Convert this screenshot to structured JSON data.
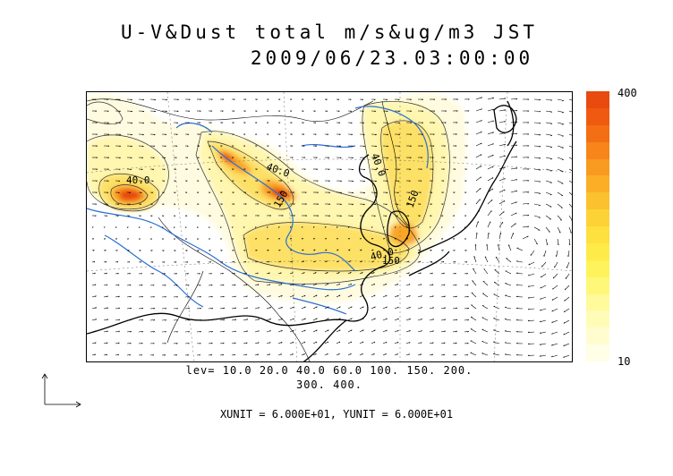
{
  "title": {
    "line1": "U-V&Dust total m/s&ug/m3 JST",
    "line2": "2009/06/23.03:00:00"
  },
  "map": {
    "contour_labels": [
      "40.0",
      "40.0",
      "40.0",
      "150",
      "40.0",
      "150",
      "150"
    ],
    "colors": {
      "land_line": "#000000",
      "river": "#2a6fd6",
      "lowest": "#fffbe0",
      "highest": "#e84a10"
    }
  },
  "colorbar": {
    "max_label": "400",
    "min_label": "10",
    "colors": [
      "#e84a10",
      "#f05a10",
      "#f46e14",
      "#f7851a",
      "#f99a20",
      "#fbae26",
      "#fcc12e",
      "#fdd236",
      "#fee03e",
      "#feeb4a",
      "#fef35a",
      "#fff77a",
      "#fffa9a",
      "#fffcb8",
      "#fffdd0",
      "#fffee6"
    ]
  },
  "levels": {
    "line1": "lev= 10.0 20.0 40.0 60.0 100. 150. 200.",
    "line2": "300. 400."
  },
  "units": "XUNIT = 6.000E+01, YUNIT = 6.000E+01"
}
